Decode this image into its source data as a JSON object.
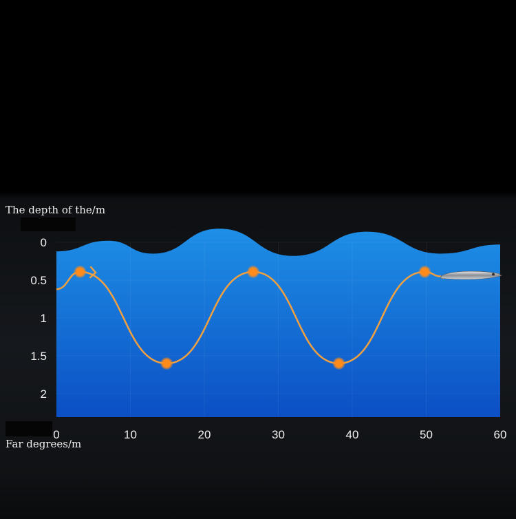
{
  "chart_data": {
    "type": "line",
    "ylabel": "The depth of the/m",
    "xlabel": "Far degrees/m",
    "xlim": [
      0,
      60
    ],
    "ylim": [
      0,
      2.3
    ],
    "y_inverted": true,
    "xticks": [
      "0",
      "10",
      "20",
      "30",
      "40",
      "50",
      "60"
    ],
    "yticks": [
      "0",
      "0.5",
      "1",
      "1.5",
      "2"
    ],
    "grid": true,
    "surface_wave": {
      "x": [
        0,
        7,
        13,
        22,
        32,
        42,
        52,
        60
      ],
      "depth": [
        0.12,
        -0.02,
        0.15,
        -0.18,
        0.18,
        -0.14,
        0.15,
        0.03
      ]
    },
    "lure_path": {
      "x": [
        0,
        3.2,
        14.9,
        26.6,
        38.2,
        49.8,
        52
      ],
      "depth": [
        0.62,
        0.39,
        1.6,
        0.39,
        1.6,
        0.39,
        0.45
      ]
    },
    "markers": {
      "x": [
        3.2,
        14.9,
        26.6,
        38.2,
        49.8
      ],
      "depth": [
        0.39,
        1.6,
        0.39,
        1.6,
        0.39
      ]
    },
    "colors": {
      "water_top": "#1e8fe6",
      "water_bottom": "#0b4fc4",
      "path": "#f0a040",
      "marker": "#ff8c1a"
    },
    "icon": "fishing-lure-icon"
  }
}
